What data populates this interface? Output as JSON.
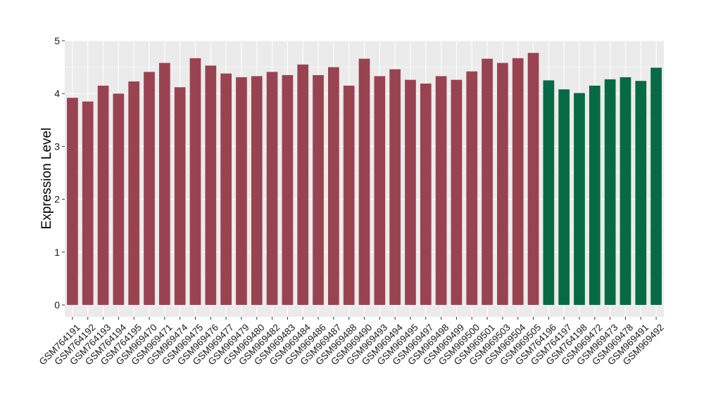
{
  "chart_data": {
    "type": "bar",
    "title": "",
    "xlabel": "",
    "ylabel": "Expression Level",
    "ylim": [
      0,
      5
    ],
    "yticks": [
      0,
      1,
      2,
      3,
      4,
      5
    ],
    "grid": true,
    "legend": "none",
    "colors": {
      "group1": "#9a4350",
      "group2": "#066a46",
      "panel_background": "#ebebeb",
      "grid": "#ffffff"
    },
    "categories": [
      "GSM764191",
      "GSM764192",
      "GSM764193",
      "GSM764194",
      "GSM764195",
      "GSM969470",
      "GSM969471",
      "GSM969474",
      "GSM969475",
      "GSM969476",
      "GSM969477",
      "GSM969479",
      "GSM969480",
      "GSM969482",
      "GSM969483",
      "GSM969484",
      "GSM969486",
      "GSM969487",
      "GSM969488",
      "GSM969490",
      "GSM969493",
      "GSM969494",
      "GSM969495",
      "GSM969497",
      "GSM969498",
      "GSM969499",
      "GSM969500",
      "GSM969501",
      "GSM969503",
      "GSM969504",
      "GSM969505",
      "GSM764196",
      "GSM764197",
      "GSM764198",
      "GSM969472",
      "GSM969473",
      "GSM969478",
      "GSM969491",
      "GSM969492"
    ],
    "values": [
      3.92,
      3.85,
      4.15,
      4.0,
      4.23,
      4.41,
      4.58,
      4.12,
      4.67,
      4.53,
      4.38,
      4.31,
      4.33,
      4.41,
      4.35,
      4.55,
      4.35,
      4.5,
      4.15,
      4.66,
      4.33,
      4.46,
      4.26,
      4.19,
      4.33,
      4.26,
      4.42,
      4.66,
      4.58,
      4.67,
      4.77,
      4.25,
      4.08,
      4.01,
      4.15,
      4.27,
      4.31,
      4.24,
      4.49
    ],
    "groups": [
      1,
      1,
      1,
      1,
      1,
      1,
      1,
      1,
      1,
      1,
      1,
      1,
      1,
      1,
      1,
      1,
      1,
      1,
      1,
      1,
      1,
      1,
      1,
      1,
      1,
      1,
      1,
      1,
      1,
      1,
      1,
      2,
      2,
      2,
      2,
      2,
      2,
      2,
      2
    ]
  }
}
